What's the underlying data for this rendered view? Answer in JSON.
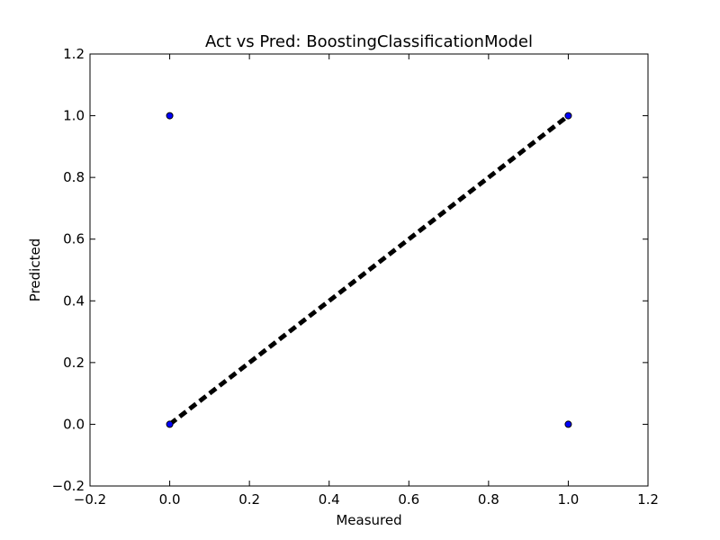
{
  "chart_data": {
    "type": "scatter",
    "title": "Act vs Pred: BoostingClassificationModel",
    "xlabel": "Measured",
    "ylabel": "Predicted",
    "xlim": [
      -0.2,
      1.2
    ],
    "ylim": [
      -0.2,
      1.2
    ],
    "xticks": [
      "−0.2",
      "0.0",
      "0.2",
      "0.4",
      "0.6",
      "0.8",
      "1.0",
      "1.2"
    ],
    "yticks": [
      "−0.2",
      "0.0",
      "0.2",
      "0.4",
      "0.6",
      "0.8",
      "1.0",
      "1.2"
    ],
    "grid": false,
    "points": [
      {
        "x": 0.0,
        "y": 0.0
      },
      {
        "x": 0.0,
        "y": 1.0
      },
      {
        "x": 1.0,
        "y": 0.0
      },
      {
        "x": 1.0,
        "y": 1.0
      }
    ],
    "reference_line": {
      "x": [
        0.0,
        1.0
      ],
      "y": [
        0.0,
        1.0
      ],
      "style": "dashed"
    },
    "colors": {
      "points": "#0000ff",
      "line": "#000000"
    }
  }
}
